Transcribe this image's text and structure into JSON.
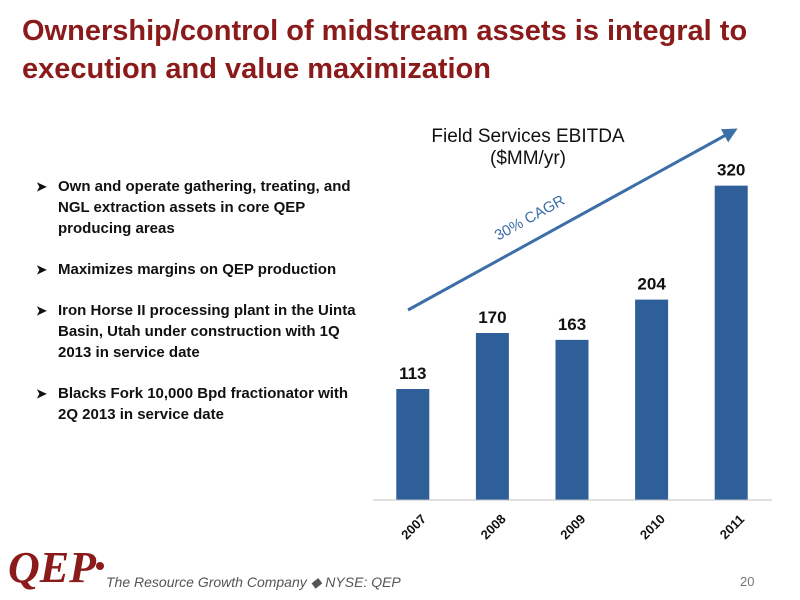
{
  "slide": {
    "title": "Ownership/control of midstream assets is integral to execution and value maximization",
    "bullets": [
      "Own and operate gathering, treating, and NGL extraction assets in core QEP producing areas",
      "Maximizes margins on QEP production",
      "Iron Horse II processing plant in the Uinta Basin, Utah under construction with 1Q 2013 in service date",
      "Blacks Fork 10,000 Bpd fractionator with 2Q 2013 in service date"
    ],
    "bullet_icon": "arrowhead-bullet-icon"
  },
  "chart_data": {
    "type": "bar",
    "title": "Field Services EBITDA",
    "subtitle": "($MM/yr)",
    "categories": [
      "2007",
      "2008",
      "2009",
      "2010",
      "2011"
    ],
    "values": [
      113,
      170,
      163,
      204,
      320
    ],
    "annotation": "30% CAGR",
    "ylim": [
      0,
      340
    ],
    "bar_color": "#2E5F99",
    "arrow_color": "#3C6EA8",
    "grid": false,
    "legend": false
  },
  "footer": {
    "logo_text": "QEP",
    "tagline": "The Resource Growth Company ◆ NYSE: QEP",
    "page_number": "20",
    "brand_color": "#8B1A1A"
  }
}
